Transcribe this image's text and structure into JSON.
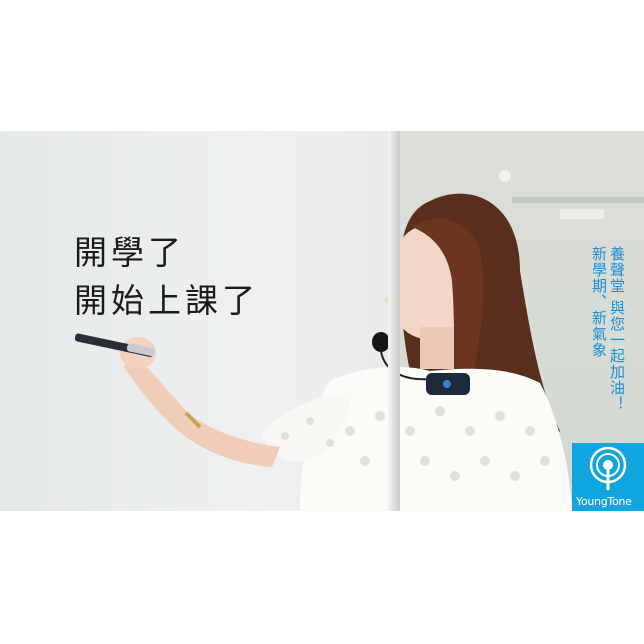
{
  "whiteboard": {
    "line1": "開學了",
    "line2": "開始上課了"
  },
  "caption": {
    "column1": "養聲堂 與您一起加油！",
    "column2": "新學期、新氣象"
  },
  "logo": {
    "text": "YoungTone",
    "color": "#11a5e0"
  },
  "colors": {
    "caption": "#1d8fd0"
  }
}
